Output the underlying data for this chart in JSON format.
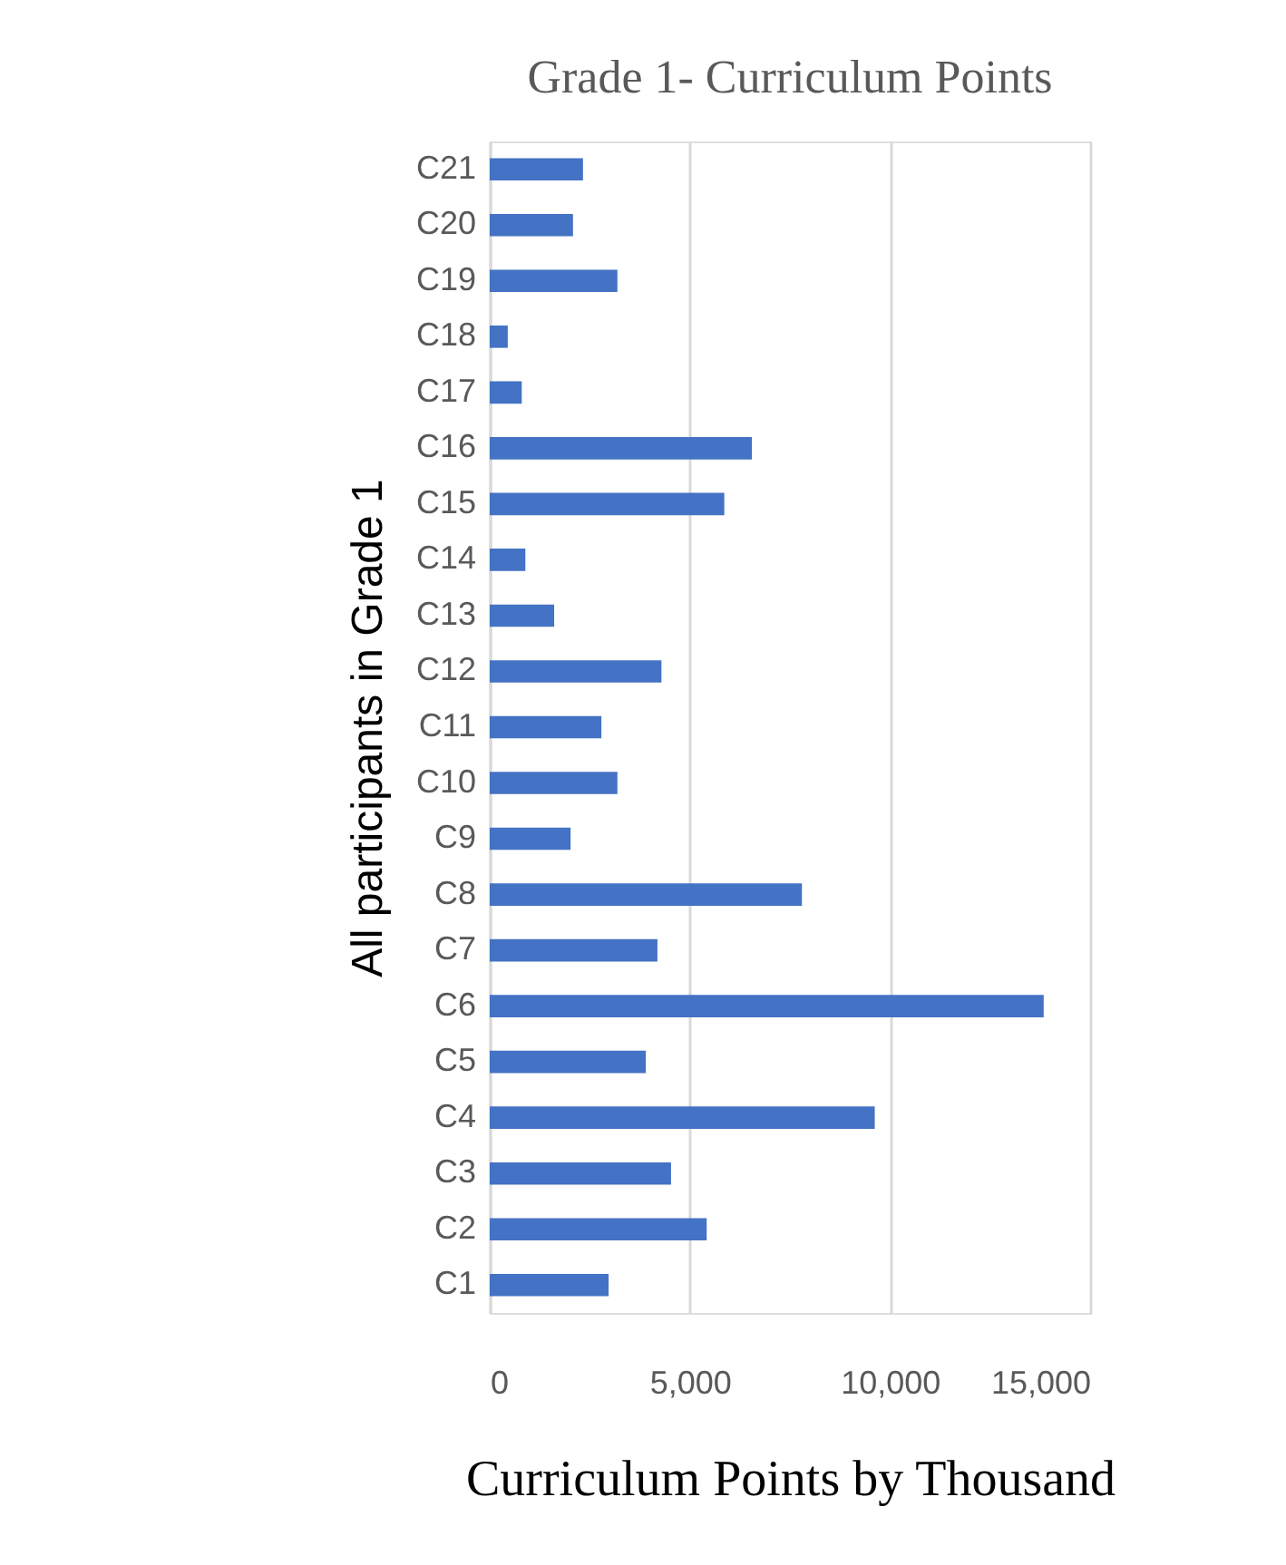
{
  "chart_data": {
    "type": "bar",
    "orientation": "horizontal",
    "title": "Grade 1- Curriculum Points",
    "xlabel": "Curriculum Points by Thousand",
    "ylabel": "All participants in Grade 1",
    "categories": [
      "C21",
      "C20",
      "C19",
      "C18",
      "C17",
      "C16",
      "C15",
      "C14",
      "C13",
      "C12",
      "C11",
      "C10",
      "C9",
      "C8",
      "C7",
      "C6",
      "C5",
      "C4",
      "C3",
      "C2",
      "C1"
    ],
    "values": [
      2330,
      2080,
      3190,
      450,
      800,
      6550,
      5860,
      890,
      1610,
      4290,
      2790,
      3190,
      2020,
      7800,
      4190,
      13840,
      3900,
      9620,
      4530,
      5420,
      2970
    ],
    "color": "#4472c4",
    "xlim": [
      0,
      15000
    ],
    "xticks": [
      0,
      {
        "value": 5000,
        "label": "5,000"
      },
      {
        "value": 10000,
        "label": "10,000"
      },
      {
        "value": 15000,
        "label": "15,000"
      }
    ],
    "grid": "x"
  }
}
